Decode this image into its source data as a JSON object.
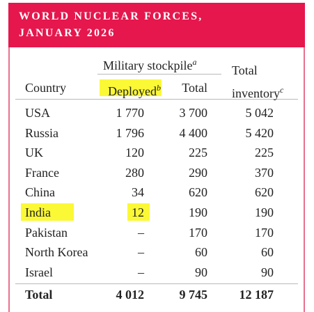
{
  "header": {
    "title_lines": [
      "WORLD NUCLEAR FORCES,",
      "JANUARY 2026"
    ]
  },
  "table": {
    "group_header": "Military stockpile",
    "group_header_note": "a",
    "columns": [
      "Country",
      "Deployed",
      "Total",
      "Total inventory"
    ],
    "column_notes": {
      "1": "b",
      "3": "c"
    },
    "rows": [
      [
        "USA",
        "1 770",
        "3 700",
        "5 042"
      ],
      [
        "Russia",
        "1 796",
        "4 400",
        "5 420"
      ],
      [
        "UK",
        "120",
        "225",
        "225"
      ],
      [
        "France",
        "280",
        "290",
        "370"
      ],
      [
        "China",
        "34",
        "620",
        "620"
      ],
      [
        "India",
        "12",
        "190",
        "190"
      ],
      [
        "Pakistan",
        "–",
        "170",
        "170"
      ],
      [
        "North Korea",
        "–",
        "60",
        "60"
      ],
      [
        "Israel",
        "–",
        "90",
        "90"
      ]
    ],
    "total": [
      "Total",
      "4 012",
      "9 745",
      "12 187"
    ]
  }
}
